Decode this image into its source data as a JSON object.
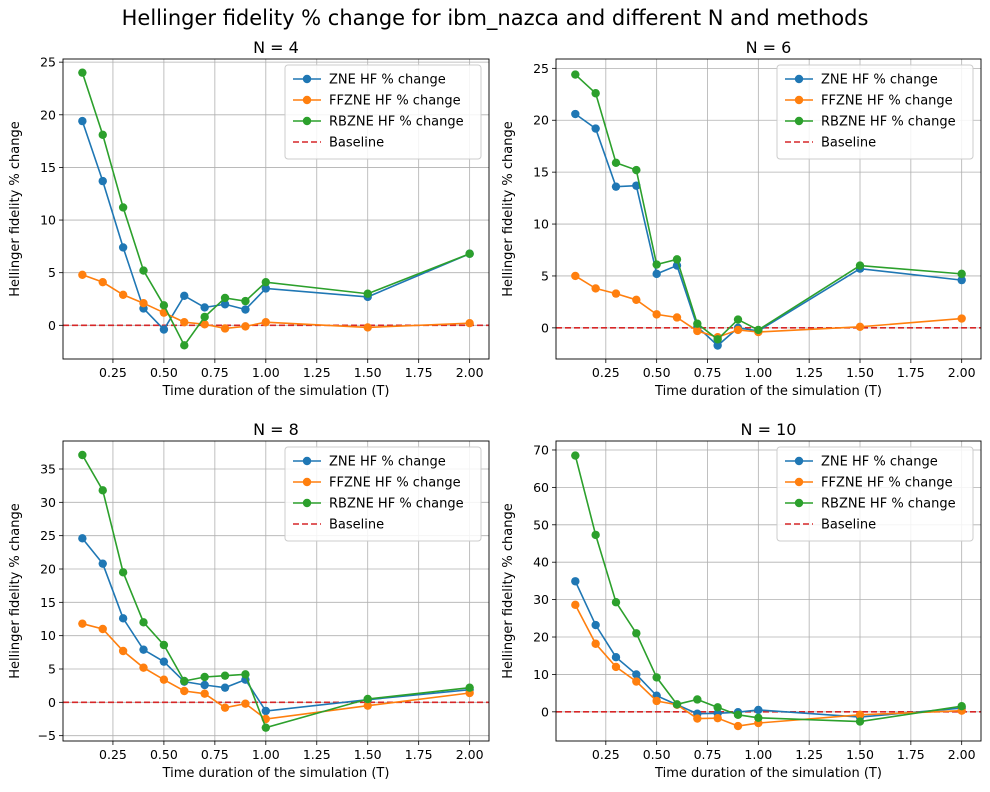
{
  "figure_title": "Hellinger fidelity % change for ibm_nazca and different N and methods",
  "series_style": [
    {
      "name": "ZNE HF % change",
      "color": "#1f77b4"
    },
    {
      "name": "FFZNE HF % change",
      "color": "#ff7f0e"
    },
    {
      "name": "RBZNE HF % change",
      "color": "#2ca02c"
    },
    {
      "name": "Baseline",
      "color": "#d62728",
      "dashed": true
    }
  ],
  "chart_data": [
    {
      "type": "line",
      "title": "N = 4",
      "xlabel": "Time duration of the simulation (T)",
      "ylabel": "Hellinger fidelity % change",
      "xlim": [
        0.005,
        2.095
      ],
      "ylim": [
        -3.2,
        25.3
      ],
      "xticks": [
        0.25,
        0.5,
        0.75,
        1.0,
        1.25,
        1.5,
        1.75,
        2.0
      ],
      "xtick_labels": [
        "0.25",
        "0.50",
        "0.75",
        "1.00",
        "1.25",
        "1.50",
        "1.75",
        "2.00"
      ],
      "yticks": [
        0,
        5,
        10,
        15,
        20,
        25
      ],
      "ytick_labels": [
        "0",
        "5",
        "10",
        "15",
        "20",
        "25"
      ],
      "x": [
        0.1,
        0.2,
        0.3,
        0.4,
        0.5,
        0.6,
        0.7,
        0.8,
        0.9,
        1.0,
        1.5,
        2.0
      ],
      "series": [
        {
          "name": "ZNE HF % change",
          "values": [
            19.4,
            13.7,
            7.4,
            1.6,
            -0.4,
            2.8,
            1.7,
            2.0,
            1.5,
            3.5,
            2.7,
            6.8
          ]
        },
        {
          "name": "FFZNE HF % change",
          "values": [
            4.8,
            4.1,
            2.9,
            2.1,
            1.2,
            0.3,
            0.1,
            -0.3,
            -0.1,
            0.3,
            -0.2,
            0.2
          ]
        },
        {
          "name": "RBZNE HF % change",
          "values": [
            24.0,
            18.1,
            11.2,
            5.2,
            1.9,
            -1.9,
            0.8,
            2.6,
            2.3,
            4.1,
            3.0,
            6.8
          ]
        }
      ],
      "baseline": 0,
      "grid": true,
      "legend": "upper right"
    },
    {
      "type": "line",
      "title": "N = 6",
      "xlabel": "Time duration of the simulation (T)",
      "ylabel": "Hellinger fidelity % change",
      "xlim": [
        0.005,
        2.095
      ],
      "ylim": [
        -3.0,
        25.9
      ],
      "xticks": [
        0.25,
        0.5,
        0.75,
        1.0,
        1.25,
        1.5,
        1.75,
        2.0
      ],
      "xtick_labels": [
        "0.25",
        "0.50",
        "0.75",
        "1.00",
        "1.25",
        "1.50",
        "1.75",
        "2.00"
      ],
      "yticks": [
        0,
        5,
        10,
        15,
        20,
        25
      ],
      "ytick_labels": [
        "0",
        "5",
        "10",
        "15",
        "20",
        "25"
      ],
      "x": [
        0.1,
        0.2,
        0.3,
        0.4,
        0.5,
        0.6,
        0.7,
        0.8,
        0.9,
        1.0,
        1.5,
        2.0
      ],
      "series": [
        {
          "name": "ZNE HF % change",
          "values": [
            20.6,
            19.2,
            13.6,
            13.7,
            5.2,
            6.0,
            0.1,
            -1.7,
            0.0,
            -0.3,
            5.7,
            4.6
          ]
        },
        {
          "name": "FFZNE HF % change",
          "values": [
            5.0,
            3.8,
            3.3,
            2.7,
            1.3,
            1.0,
            -0.3,
            -0.9,
            -0.2,
            -0.4,
            0.1,
            0.9
          ]
        },
        {
          "name": "RBZNE HF % change",
          "values": [
            24.4,
            22.6,
            15.9,
            15.2,
            6.1,
            6.6,
            0.4,
            -1.1,
            0.8,
            -0.2,
            6.0,
            5.2
          ]
        }
      ],
      "baseline": 0,
      "grid": true,
      "legend": "upper right"
    },
    {
      "type": "line",
      "title": "N = 8",
      "xlabel": "Time duration of the simulation (T)",
      "ylabel": "Hellinger fidelity % change",
      "xlim": [
        0.005,
        2.095
      ],
      "ylim": [
        -5.8,
        39.2
      ],
      "xticks": [
        0.25,
        0.5,
        0.75,
        1.0,
        1.25,
        1.5,
        1.75,
        2.0
      ],
      "xtick_labels": [
        "0.25",
        "0.50",
        "0.75",
        "1.00",
        "1.25",
        "1.50",
        "1.75",
        "2.00"
      ],
      "yticks": [
        -5,
        0,
        5,
        10,
        15,
        20,
        25,
        30,
        35
      ],
      "ytick_labels": [
        "−5",
        "0",
        "5",
        "10",
        "15",
        "20",
        "25",
        "30",
        "35"
      ],
      "x": [
        0.1,
        0.2,
        0.3,
        0.4,
        0.5,
        0.6,
        0.7,
        0.8,
        0.9,
        1.0,
        1.5,
        2.0
      ],
      "series": [
        {
          "name": "ZNE HF % change",
          "values": [
            24.6,
            20.8,
            12.6,
            7.9,
            6.1,
            3.1,
            2.6,
            2.2,
            3.4,
            -1.3,
            0.4,
            1.9
          ]
        },
        {
          "name": "FFZNE HF % change",
          "values": [
            11.8,
            11.0,
            7.7,
            5.2,
            3.4,
            1.7,
            1.3,
            -0.8,
            -0.2,
            -2.5,
            -0.5,
            1.4
          ]
        },
        {
          "name": "RBZNE HF % change",
          "values": [
            37.1,
            31.8,
            19.5,
            12.0,
            8.6,
            3.2,
            3.8,
            4.0,
            4.2,
            -3.8,
            0.5,
            2.2
          ]
        }
      ],
      "baseline": 0,
      "grid": true,
      "legend": "upper right"
    },
    {
      "type": "line",
      "title": "N = 10",
      "xlabel": "Time duration of the simulation (T)",
      "ylabel": "Hellinger fidelity % change",
      "xlim": [
        0.005,
        2.095
      ],
      "ylim": [
        -7.8,
        72.4
      ],
      "xticks": [
        0.25,
        0.5,
        0.75,
        1.0,
        1.25,
        1.5,
        1.75,
        2.0
      ],
      "xtick_labels": [
        "0.25",
        "0.50",
        "0.75",
        "1.00",
        "1.25",
        "1.50",
        "1.75",
        "2.00"
      ],
      "yticks": [
        0,
        10,
        20,
        30,
        40,
        50,
        60,
        70
      ],
      "ytick_labels": [
        "0",
        "10",
        "20",
        "30",
        "40",
        "50",
        "60",
        "70"
      ],
      "x": [
        0.1,
        0.2,
        0.3,
        0.4,
        0.5,
        0.6,
        0.7,
        0.8,
        0.9,
        1.0,
        1.5,
        2.0
      ],
      "series": [
        {
          "name": "ZNE HF % change",
          "values": [
            34.9,
            23.2,
            14.6,
            10.0,
            4.3,
            1.9,
            -0.5,
            -0.4,
            -0.1,
            0.5,
            -1.4,
            1.0
          ]
        },
        {
          "name": "FFZNE HF % change",
          "values": [
            28.6,
            18.2,
            12.0,
            8.1,
            2.9,
            1.9,
            -1.8,
            -1.7,
            -3.8,
            -3.0,
            -0.8,
            0.3
          ]
        },
        {
          "name": "RBZNE HF % change",
          "values": [
            68.5,
            47.3,
            29.3,
            21.0,
            9.2,
            2.0,
            3.3,
            1.2,
            -0.8,
            -1.6,
            -2.6,
            1.5
          ]
        }
      ],
      "baseline": 0,
      "grid": true,
      "legend": "upper right"
    }
  ]
}
